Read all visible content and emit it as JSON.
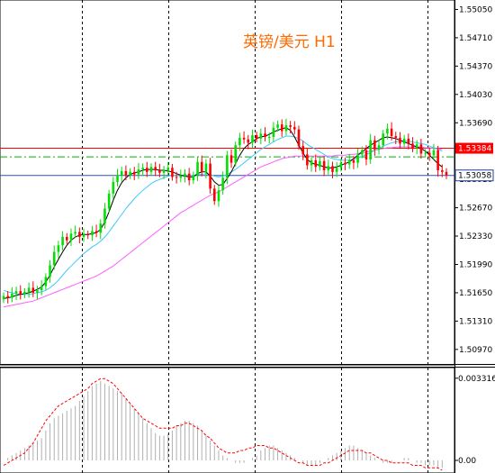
{
  "chart_data": {
    "type": "candlestick",
    "title": "英镑/美元  H1",
    "colors": {
      "bull": "#00e000",
      "bear": "#ff0000",
      "ma_fast": "#000000",
      "ma_mid": "#40c8ff",
      "ma_slow": "#ff60ff",
      "hline_red": "#ff0000",
      "hline_green": "#00b000",
      "hline_blue": "#3050a0",
      "macd_hist": "#b0b0b0",
      "macd_signal": "#ff0000",
      "price_box_red": "#ff0000",
      "price_box_blue": "#2040a0"
    },
    "price_axis": {
      "ylim": [
        1.5086,
        1.5512
      ],
      "ticks": [
        "1.55050",
        "1.54710",
        "1.54370",
        "1.54030",
        "1.53690",
        "1.53350",
        "1.53010",
        "1.52670",
        "1.52330",
        "1.51990",
        "1.51650",
        "1.51310",
        "1.50970"
      ]
    },
    "hlines": {
      "red_level": 1.53384,
      "green_level": 1.5328,
      "blue_level": 1.53058,
      "red_label": "1.53384",
      "blue_label": "1.53058"
    },
    "candles": {
      "open": [
        1.5157,
        1.5161,
        1.5159,
        1.5164,
        1.5167,
        1.5163,
        1.5166,
        1.5171,
        1.5165,
        1.5168,
        1.5173,
        1.5184,
        1.5198,
        1.5214,
        1.5222,
        1.5232,
        1.5228,
        1.5236,
        1.5238,
        1.5232,
        1.5235,
        1.5234,
        1.5239,
        1.5237,
        1.5248,
        1.5266,
        1.5284,
        1.5298,
        1.5306,
        1.5311,
        1.5306,
        1.531,
        1.5307,
        1.5313,
        1.5315,
        1.531,
        1.5316,
        1.5312,
        1.5309,
        1.5312,
        1.5315,
        1.5304,
        1.5303,
        1.5305,
        1.5308,
        1.53,
        1.5306,
        1.5322,
        1.531,
        1.532,
        1.529,
        1.5275,
        1.5288,
        1.5303,
        1.533,
        1.5321,
        1.5342,
        1.5351,
        1.5349,
        1.5345,
        1.5354,
        1.535,
        1.5356,
        1.5352,
        1.5352,
        1.5363,
        1.5367,
        1.5359,
        1.5366,
        1.5364,
        1.5361,
        1.5341,
        1.5331,
        1.5318,
        1.5324,
        1.5316,
        1.5323,
        1.5312,
        1.5317,
        1.531,
        1.5315,
        1.5321,
        1.5319,
        1.5324,
        1.5321,
        1.5331,
        1.5336,
        1.5325,
        1.5348,
        1.5337,
        1.5342,
        1.5356,
        1.5362,
        1.5353,
        1.5351,
        1.5344,
        1.535,
        1.5344,
        1.5339,
        1.5343,
        1.5332,
        1.5333,
        1.533,
        1.5336,
        1.5312,
        1.531
      ],
      "close": [
        1.5161,
        1.5159,
        1.5164,
        1.5167,
        1.5163,
        1.5166,
        1.5171,
        1.5165,
        1.5168,
        1.5173,
        1.5184,
        1.5198,
        1.5214,
        1.5222,
        1.5232,
        1.5228,
        1.5236,
        1.5238,
        1.5232,
        1.5235,
        1.5234,
        1.5239,
        1.5237,
        1.5248,
        1.5266,
        1.5284,
        1.5298,
        1.5306,
        1.5311,
        1.5306,
        1.531,
        1.5307,
        1.5313,
        1.5315,
        1.531,
        1.5316,
        1.5312,
        1.5309,
        1.5312,
        1.5315,
        1.5304,
        1.5303,
        1.5305,
        1.5308,
        1.53,
        1.5306,
        1.5322,
        1.531,
        1.532,
        1.529,
        1.5275,
        1.5288,
        1.5303,
        1.533,
        1.5321,
        1.5342,
        1.5351,
        1.5349,
        1.5345,
        1.5354,
        1.535,
        1.5356,
        1.5352,
        1.5352,
        1.5363,
        1.5367,
        1.5359,
        1.5366,
        1.5364,
        1.5361,
        1.5341,
        1.5331,
        1.5318,
        1.5324,
        1.5316,
        1.5323,
        1.5312,
        1.5317,
        1.531,
        1.5315,
        1.5321,
        1.5319,
        1.5324,
        1.5321,
        1.5331,
        1.5336,
        1.5325,
        1.5348,
        1.5337,
        1.5342,
        1.5356,
        1.5362,
        1.5353,
        1.5351,
        1.5344,
        1.535,
        1.5344,
        1.5339,
        1.5343,
        1.5332,
        1.5333,
        1.533,
        1.5336,
        1.5312,
        1.531,
        1.5306
      ]
    },
    "ma": {
      "fast": [
        1.5158,
        1.5159,
        1.516,
        1.5162,
        1.5163,
        1.5164,
        1.5165,
        1.5167,
        1.5169,
        1.5172,
        1.5178,
        1.5186,
        1.5196,
        1.5205,
        1.5214,
        1.5222,
        1.5228,
        1.5232,
        1.5234,
        1.5235,
        1.5235,
        1.5236,
        1.5237,
        1.5241,
        1.525,
        1.5262,
        1.5276,
        1.5288,
        1.5297,
        1.5303,
        1.5307,
        1.5309,
        1.531,
        1.5312,
        1.5313,
        1.5313,
        1.5313,
        1.5312,
        1.5312,
        1.5311,
        1.531,
        1.5308,
        1.5306,
        1.5305,
        1.5304,
        1.5304,
        1.5308,
        1.531,
        1.531,
        1.5305,
        1.5298,
        1.5294,
        1.5295,
        1.5302,
        1.531,
        1.532,
        1.533,
        1.5338,
        1.5343,
        1.5346,
        1.535,
        1.5352,
        1.5353,
        1.5355,
        1.5358,
        1.536,
        1.5362,
        1.5363,
        1.536,
        1.5352,
        1.5342,
        1.5333,
        1.5325,
        1.5321,
        1.5319,
        1.5318,
        1.5316,
        1.5315,
        1.5315,
        1.5316,
        1.5318,
        1.532,
        1.5322,
        1.5326,
        1.533,
        1.5334,
        1.5338,
        1.5342,
        1.5345,
        1.5348,
        1.5351,
        1.5352,
        1.5351,
        1.535,
        1.5348,
        1.5346,
        1.5344,
        1.5342,
        1.534,
        1.5338,
        1.5335,
        1.533,
        1.5325,
        1.532,
        1.5316
      ],
      "mid": [
        1.5168,
        1.5166,
        1.5165,
        1.5164,
        1.5163,
        1.5163,
        1.5163,
        1.5164,
        1.5165,
        1.5166,
        1.5168,
        1.5171,
        1.5175,
        1.518,
        1.5186,
        1.5192,
        1.5197,
        1.5202,
        1.5207,
        1.5212,
        1.5216,
        1.522,
        1.5223,
        1.5227,
        1.5232,
        1.5238,
        1.5245,
        1.5252,
        1.5259,
        1.5266,
        1.5272,
        1.5278,
        1.5283,
        1.5288,
        1.5292,
        1.5296,
        1.5299,
        1.5301,
        1.5303,
        1.5305,
        1.5306,
        1.5306,
        1.5306,
        1.5306,
        1.5306,
        1.5306,
        1.5307,
        1.5307,
        1.5308,
        1.5307,
        1.5305,
        1.5304,
        1.5305,
        1.5307,
        1.531,
        1.5313,
        1.5317,
        1.5321,
        1.5325,
        1.5329,
        1.5333,
        1.5337,
        1.534,
        1.5343,
        1.5346,
        1.5349,
        1.5351,
        1.5353,
        1.5353,
        1.5352,
        1.535,
        1.5347,
        1.5343,
        1.534,
        1.5337,
        1.5334,
        1.5331,
        1.5328,
        1.5326,
        1.5325,
        1.5324,
        1.5324,
        1.5324,
        1.5325,
        1.5327,
        1.5329,
        1.5331,
        1.5333,
        1.5336,
        1.5338,
        1.5341,
        1.5343,
        1.5345,
        1.5346,
        1.5347,
        1.5347,
        1.5347,
        1.5346,
        1.5345,
        1.5344,
        1.5343,
        1.5341,
        1.5339,
        1.5337,
        1.5335
      ],
      "slow": [
        1.5148,
        1.5149,
        1.515,
        1.5151,
        1.5152,
        1.5153,
        1.5154,
        1.5155,
        1.5157,
        1.5159,
        1.5161,
        1.5163,
        1.5165,
        1.5167,
        1.5169,
        1.5171,
        1.5173,
        1.5175,
        1.5177,
        1.5179,
        1.5181,
        1.5183,
        1.5185,
        1.5188,
        1.5191,
        1.5194,
        1.5197,
        1.5201,
        1.5205,
        1.5209,
        1.5213,
        1.5217,
        1.5221,
        1.5225,
        1.5229,
        1.5233,
        1.5237,
        1.5241,
        1.5245,
        1.5249,
        1.5253,
        1.5257,
        1.5261,
        1.5264,
        1.5267,
        1.527,
        1.5273,
        1.5276,
        1.5279,
        1.5282,
        1.5284,
        1.5286,
        1.5289,
        1.5292,
        1.5295,
        1.5298,
        1.5301,
        1.5304,
        1.5307,
        1.531,
        1.5313,
        1.5316,
        1.5318,
        1.532,
        1.5322,
        1.5324,
        1.5326,
        1.5327,
        1.5328,
        1.5329,
        1.5329,
        1.5329,
        1.5329,
        1.5329,
        1.5329,
        1.5329,
        1.5329,
        1.5329,
        1.5329,
        1.533,
        1.533,
        1.533,
        1.5331,
        1.5331,
        1.5332,
        1.5333,
        1.5334,
        1.5335,
        1.5336,
        1.5337,
        1.5338,
        1.5339,
        1.5339,
        1.534,
        1.534,
        1.534,
        1.534,
        1.534,
        1.534,
        1.534,
        1.5339,
        1.5339,
        1.5338,
        1.5338,
        1.5337
      ]
    },
    "macd": {
      "axis_ticks": [
        "0.003316",
        "0.00"
      ],
      "ylim": [
        -0.0004,
        0.0036
      ],
      "hist": [
        0.0,
        0.0001,
        0.0002,
        0.0003,
        0.0004,
        0.0005,
        0.0006,
        0.0007,
        0.0008,
        0.0009,
        0.0012,
        0.0015,
        0.0017,
        0.0018,
        0.0019,
        0.002,
        0.0021,
        0.0022,
        0.0024,
        0.0026,
        0.0028,
        0.003,
        0.0031,
        0.0032,
        0.0031,
        0.003,
        0.0029,
        0.0028,
        0.0027,
        0.0025,
        0.0023,
        0.0021,
        0.0019,
        0.0017,
        0.0015,
        0.0013,
        0.0011,
        0.001,
        0.001,
        0.0011,
        0.0012,
        0.0014,
        0.0015,
        0.0016,
        0.0016,
        0.0015,
        0.0014,
        0.0012,
        0.001,
        0.0008,
        0.0006,
        0.0004,
        0.0002,
        0.0001,
        0.0,
        -0.0001,
        -0.0001,
        -0.0001,
        0.0,
        0.0001,
        0.0002,
        0.0004,
        0.0005,
        0.0006,
        0.0006,
        0.0005,
        0.0004,
        0.0003,
        0.0002,
        0.0001,
        0.0,
        -0.0001,
        -0.0002,
        -0.0002,
        -0.0002,
        -0.0001,
        0.0,
        0.0001,
        0.0002,
        0.0003,
        0.0004,
        0.0005,
        0.0006,
        0.0006,
        0.0005,
        0.0004,
        0.0003,
        0.0002,
        0.0001,
        0.0,
        -0.0001,
        -0.0001,
        -0.0001,
        0.0,
        0.0,
        0.0001,
        0.0001,
        0.0,
        -0.0001,
        -0.0001,
        -0.0002,
        -0.0002,
        -0.0002,
        -0.0003,
        -0.0003
      ],
      "signal": [
        -0.0002,
        -0.0001,
        0.0,
        0.0001,
        0.0002,
        0.0003,
        0.0005,
        0.0007,
        0.001,
        0.0013,
        0.0016,
        0.0018,
        0.002,
        0.0022,
        0.0023,
        0.0024,
        0.0025,
        0.0026,
        0.0027,
        0.0028,
        0.0029,
        0.0031,
        0.0032,
        0.0033,
        0.0033,
        0.0032,
        0.0031,
        0.0029,
        0.0027,
        0.0025,
        0.0023,
        0.0021,
        0.0019,
        0.0017,
        0.0016,
        0.0015,
        0.0014,
        0.0013,
        0.0013,
        0.0013,
        0.0013,
        0.0014,
        0.0014,
        0.0015,
        0.0015,
        0.0014,
        0.0013,
        0.0012,
        0.001,
        0.0009,
        0.0007,
        0.0005,
        0.0004,
        0.0003,
        0.0003,
        0.0003,
        0.0004,
        0.0004,
        0.0005,
        0.0005,
        0.0006,
        0.0006,
        0.0006,
        0.0005,
        0.0005,
        0.0004,
        0.0003,
        0.0002,
        0.0001,
        0.0,
        -0.0001,
        -0.0001,
        -0.0002,
        -0.0002,
        -0.0002,
        -0.0002,
        -0.0001,
        -0.0001,
        0.0,
        0.0001,
        0.0002,
        0.0003,
        0.0004,
        0.0004,
        0.0004,
        0.0004,
        0.0003,
        0.0003,
        0.0002,
        0.0001,
        0.0,
        0.0,
        -0.0001,
        -0.0001,
        -0.0001,
        -0.0001,
        -0.0001,
        -0.0002,
        -0.0002,
        -0.0002,
        -0.0003,
        -0.0003,
        -0.0003,
        -0.0003,
        -0.0004
      ]
    }
  }
}
